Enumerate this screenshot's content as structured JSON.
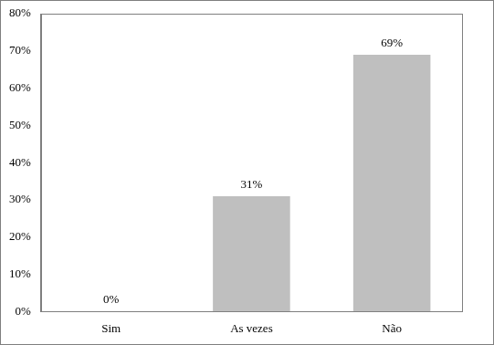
{
  "chart_data": {
    "type": "bar",
    "categories": [
      "Sim",
      "As vezes",
      "Não"
    ],
    "values": [
      0,
      31,
      69
    ],
    "value_labels": [
      "0%",
      "31%",
      "69%"
    ],
    "color": "#bfbfbf",
    "ylim": [
      0,
      80
    ],
    "yticks": [
      {
        "value": 0,
        "label": "0%"
      },
      {
        "value": 10,
        "label": "10%"
      },
      {
        "value": 20,
        "label": "20%"
      },
      {
        "value": 30,
        "label": "30%"
      },
      {
        "value": 40,
        "label": "40%"
      },
      {
        "value": 50,
        "label": "50%"
      },
      {
        "value": 60,
        "label": "60%"
      },
      {
        "value": 70,
        "label": "70%"
      },
      {
        "value": 80,
        "label": "80%"
      }
    ],
    "grid": false,
    "data_labels": true
  }
}
